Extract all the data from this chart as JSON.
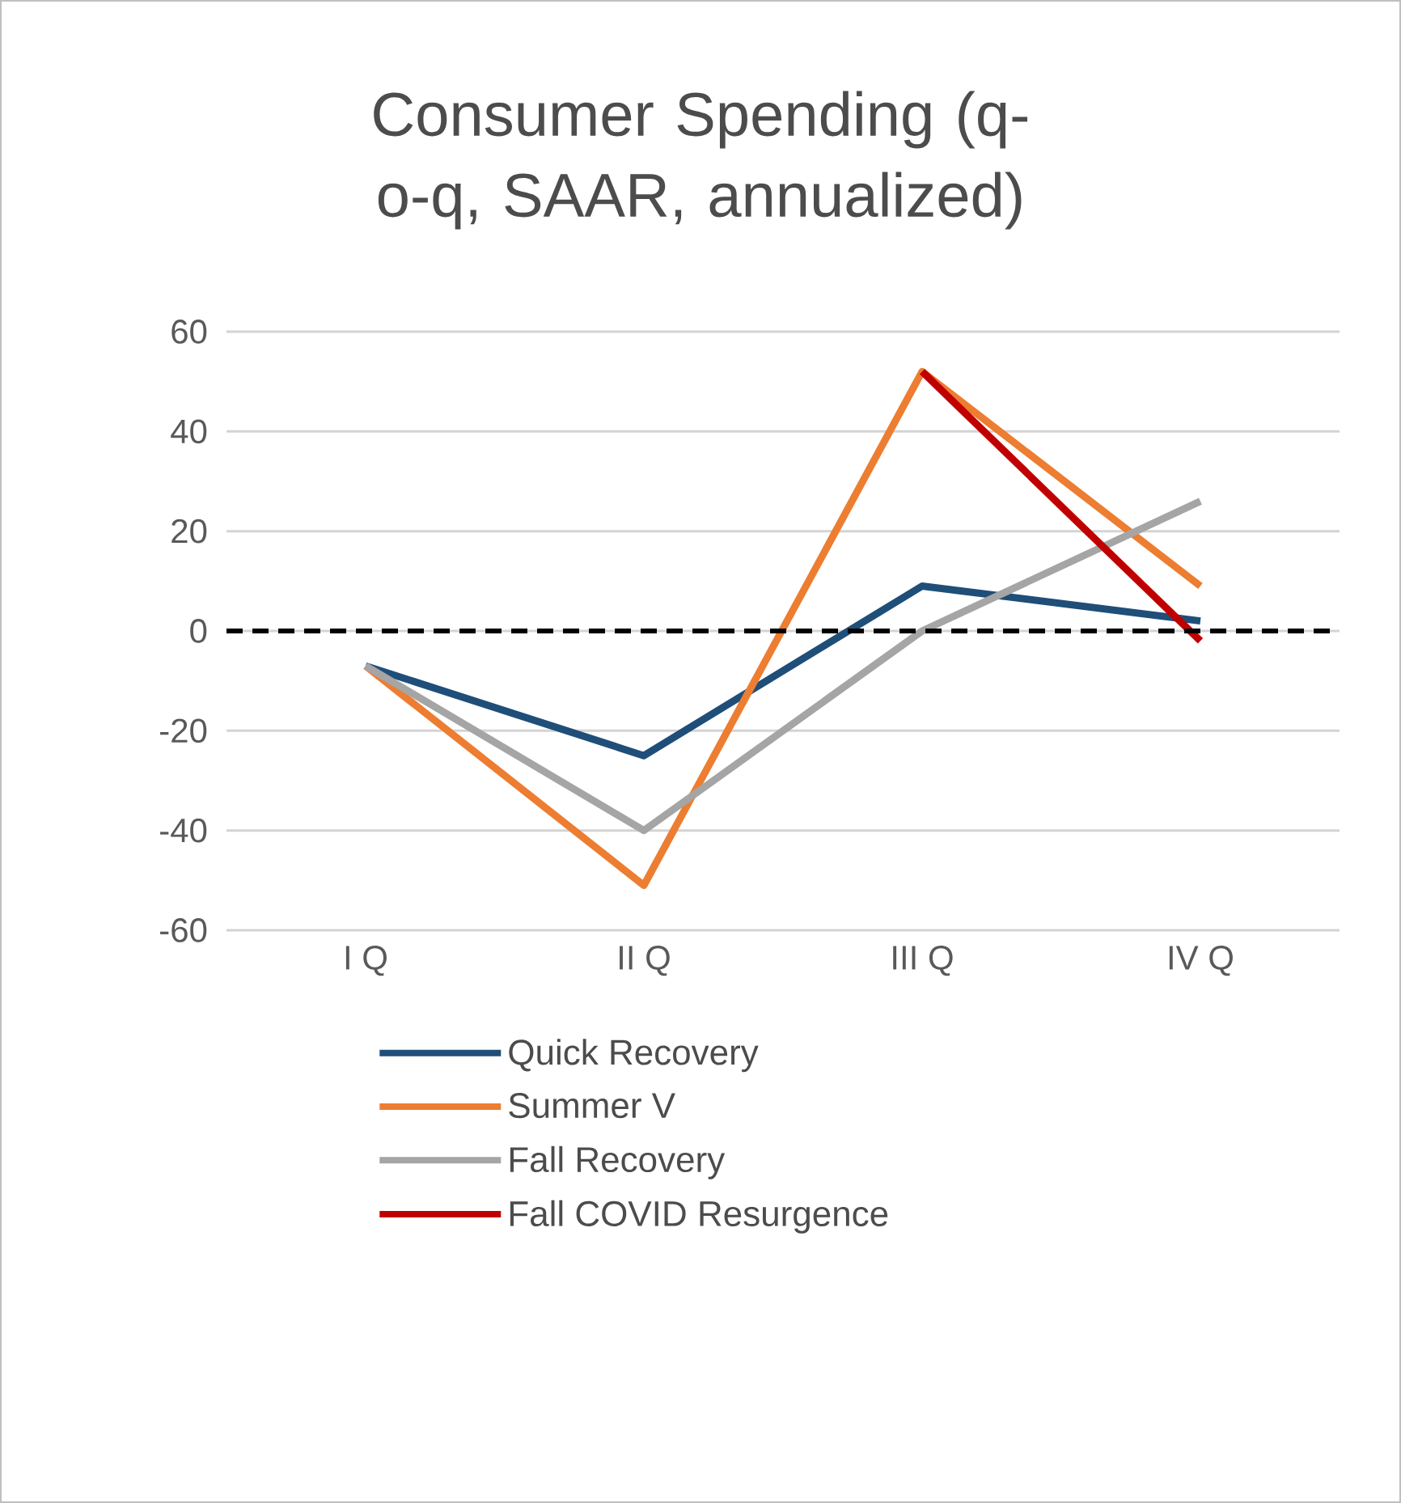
{
  "chart_data": {
    "type": "line",
    "title": "Consumer Spending (q-o-q, SAAR, annualized)",
    "categories": [
      "I Q",
      "II Q",
      "III Q",
      "IV Q"
    ],
    "series": [
      {
        "name": "Quick Recovery",
        "color": "#1f4e79",
        "values": [
          -7,
          -25,
          9,
          2
        ]
      },
      {
        "name": "Summer V",
        "color": "#ed7d31",
        "values": [
          -7,
          -51,
          52,
          9
        ]
      },
      {
        "name": "Fall Recovery",
        "color": "#a5a5a5",
        "values": [
          -7,
          -40,
          0,
          26
        ]
      },
      {
        "name": "Fall COVID Resurgence",
        "color": "#c00000",
        "values": [
          null,
          null,
          52,
          -2
        ]
      }
    ],
    "ylim": [
      -60,
      60
    ],
    "yticks": [
      -60,
      -40,
      -20,
      0,
      20,
      40,
      60
    ],
    "grid": "y",
    "legend": "bottom",
    "marker": "none",
    "line_style": "solid",
    "ref_lines": [
      {
        "axis": "y",
        "value": 0,
        "color": "#000000",
        "line_style": "dashed"
      }
    ]
  }
}
